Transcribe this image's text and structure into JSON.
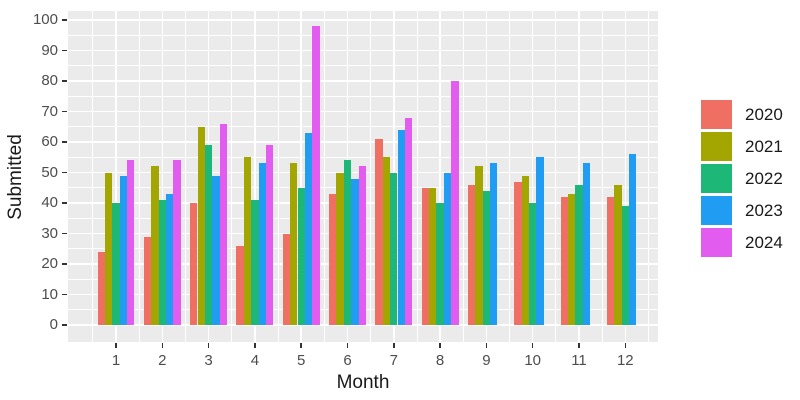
{
  "chart_data": {
    "type": "bar",
    "title": "",
    "xlabel": "Month",
    "ylabel": "Submitted",
    "ylim": [
      0,
      100
    ],
    "ytick_step": 10,
    "grid": "major-every-10-minor-every-5",
    "legend_position": "right",
    "panel_bg": "#EBEBEB",
    "gridline_color": "#FFFFFF",
    "tick_label_color": "#4d4d4d",
    "axis_title_color": "#1a1a1a",
    "categories": [
      "1",
      "2",
      "3",
      "4",
      "5",
      "6",
      "7",
      "8",
      "9",
      "10",
      "11",
      "12"
    ],
    "yticks": [
      "0",
      "10",
      "20",
      "30",
      "40",
      "50",
      "60",
      "70",
      "80",
      "90",
      "100"
    ],
    "series": [
      {
        "name": "2020",
        "color": "#EF6F63",
        "values": [
          24,
          29,
          40,
          26,
          30,
          43,
          61,
          45,
          46,
          47,
          42,
          42
        ]
      },
      {
        "name": "2021",
        "color": "#A3A500",
        "values": [
          50,
          52,
          65,
          55,
          53,
          50,
          55,
          45,
          52,
          49,
          43,
          46
        ]
      },
      {
        "name": "2022",
        "color": "#1DB877",
        "values": [
          40,
          41,
          59,
          41,
          45,
          54,
          50,
          40,
          44,
          40,
          46,
          39
        ]
      },
      {
        "name": "2023",
        "color": "#209CF2",
        "values": [
          49,
          43,
          49,
          53,
          63,
          48,
          64,
          50,
          53,
          55,
          53,
          56
        ]
      },
      {
        "name": "2024",
        "color": "#E25CF0",
        "values": [
          54,
          54,
          66,
          59,
          98,
          52,
          68,
          80,
          null,
          null,
          null,
          null
        ]
      }
    ]
  }
}
